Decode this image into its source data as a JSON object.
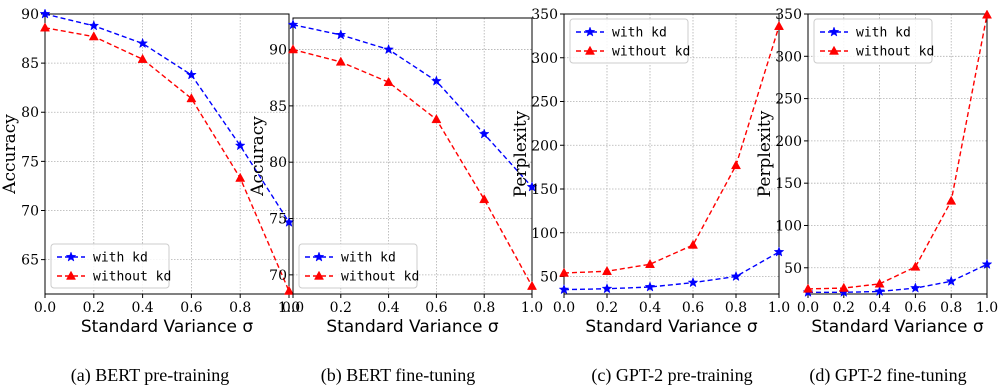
{
  "chart_data": [
    {
      "type": "line",
      "caption": "(a)  BERT pre-training",
      "xlabel": "Standard Variance σ",
      "ylabel": "Accuracy",
      "x": [
        0.0,
        0.2,
        0.4,
        0.6,
        0.8,
        1.0
      ],
      "xticks": [
        "0.0",
        "0.2",
        "0.4",
        "0.6",
        "0.8",
        "1.0"
      ],
      "ylim": [
        61.5,
        90
      ],
      "yticks": [
        65,
        70,
        75,
        80,
        85,
        90
      ],
      "legend_position": "lower-left",
      "series": [
        {
          "name": "with kd",
          "color": "#0000ff",
          "marker": "star",
          "values": [
            90.0,
            88.8,
            87.0,
            83.8,
            76.6,
            68.8
          ]
        },
        {
          "name": "without kd",
          "color": "#ff0000",
          "marker": "triangle",
          "values": [
            88.6,
            87.7,
            85.4,
            81.4,
            73.3,
            61.8
          ]
        }
      ]
    },
    {
      "type": "line",
      "caption": "(b)  BERT fine-tuning",
      "xlabel": "Standard Variance σ",
      "ylabel": "Accuracy",
      "x": [
        0.0,
        0.2,
        0.4,
        0.6,
        0.8,
        1.0
      ],
      "xticks": [
        "0.0",
        "0.2",
        "0.4",
        "0.6",
        "0.8",
        "1.0"
      ],
      "ylim": [
        68.3,
        92.8
      ],
      "yticks": [
        70,
        75,
        80,
        85,
        90
      ],
      "legend_position": "lower-left",
      "series": [
        {
          "name": "with kd",
          "color": "#0000ff",
          "marker": "star",
          "values": [
            92.2,
            91.3,
            90.0,
            87.2,
            82.5,
            77.8
          ]
        },
        {
          "name": "without kd",
          "color": "#ff0000",
          "marker": "triangle",
          "values": [
            90.0,
            88.9,
            87.1,
            83.8,
            76.7,
            69.0
          ]
        }
      ]
    },
    {
      "type": "line",
      "caption": "(c)  GPT-2 pre-training",
      "xlabel": "Standard Variance σ",
      "ylabel": "Perplexity",
      "x": [
        0.0,
        0.2,
        0.4,
        0.6,
        0.8,
        1.0
      ],
      "xticks": [
        "0.0",
        "0.2",
        "0.4",
        "0.6",
        "0.8",
        "1.0"
      ],
      "ylim": [
        30,
        350
      ],
      "yticks": [
        50,
        100,
        150,
        200,
        250,
        300,
        350
      ],
      "legend_position": "top-left",
      "series": [
        {
          "name": "with kd",
          "color": "#0000ff",
          "marker": "star",
          "values": [
            35,
            36,
            38,
            43,
            50,
            78
          ]
        },
        {
          "name": "without kd",
          "color": "#ff0000",
          "marker": "triangle",
          "values": [
            54,
            56,
            64,
            86,
            177,
            336
          ]
        }
      ]
    },
    {
      "type": "line",
      "caption": "(d)  GPT-2 fine-tuning",
      "xlabel": "Standard Variance σ",
      "ylabel": "Perplexity",
      "x": [
        0.0,
        0.2,
        0.4,
        0.6,
        0.8,
        1.0
      ],
      "xticks": [
        "0.0",
        "0.2",
        "0.4",
        "0.6",
        "0.8",
        "1.0"
      ],
      "ylim": [
        19,
        350
      ],
      "yticks": [
        50,
        100,
        150,
        200,
        250,
        300,
        350
      ],
      "legend_position": "top-left",
      "series": [
        {
          "name": "with kd",
          "color": "#0000ff",
          "marker": "star",
          "values": [
            21,
            21,
            22,
            26,
            34,
            54
          ]
        },
        {
          "name": "without kd",
          "color": "#ff0000",
          "marker": "triangle",
          "values": [
            25,
            26,
            31,
            51,
            129,
            349
          ]
        }
      ]
    }
  ]
}
